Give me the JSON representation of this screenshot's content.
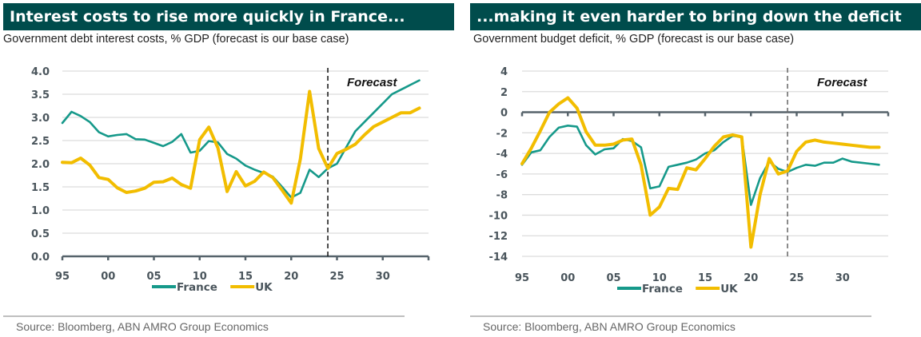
{
  "colors": {
    "france": "#16998a",
    "uk": "#f2bd00",
    "header_bg": "#004c4c",
    "axis": "#56636b",
    "grid": "#dcdcdc"
  },
  "chart_data": [
    {
      "type": "line",
      "title": "Interest costs to rise more quickly in France...",
      "subtitle": "Government debt interest costs, % GDP (forecast is our base case)",
      "xlabel": "",
      "ylabel": "",
      "x_start": 1995,
      "x_end": 2035,
      "x_ticks": [
        1995,
        2000,
        2005,
        2010,
        2015,
        2020,
        2025,
        2030,
        2035
      ],
      "x_tick_labels": [
        "95",
        "00",
        "05",
        "10",
        "15",
        "20",
        "25",
        "30",
        ""
      ],
      "ylim": [
        0,
        4
      ],
      "y_ticks": [
        0,
        0.5,
        1,
        1.5,
        2,
        2.5,
        3,
        3.5,
        4
      ],
      "y_tick_labels": [
        "0.0",
        "0.5",
        "1.0",
        "1.5",
        "2.0",
        "2.5",
        "3.0",
        "3.5",
        "4.0"
      ],
      "grid": true,
      "baseline": 0,
      "forecast_start": 2024,
      "forecast_label": "Forecast",
      "legend": {
        "position": "bottom",
        "entries": [
          "France",
          "UK"
        ]
      },
      "x": [
        1995,
        1996,
        1997,
        1998,
        1999,
        2000,
        2001,
        2002,
        2003,
        2004,
        2005,
        2006,
        2007,
        2008,
        2009,
        2010,
        2011,
        2012,
        2013,
        2014,
        2015,
        2016,
        2017,
        2018,
        2019,
        2020,
        2021,
        2022,
        2023,
        2024,
        2025,
        2026,
        2027,
        2028,
        2029,
        2030,
        2031,
        2032,
        2033,
        2034
      ],
      "series": [
        {
          "name": "France",
          "values": [
            2.88,
            3.12,
            3.03,
            2.9,
            2.68,
            2.59,
            2.62,
            2.64,
            2.53,
            2.52,
            2.45,
            2.38,
            2.47,
            2.64,
            2.24,
            2.28,
            2.49,
            2.46,
            2.21,
            2.11,
            1.96,
            1.87,
            1.8,
            1.72,
            1.5,
            1.27,
            1.37,
            1.87,
            1.71,
            1.9,
            2.0,
            2.35,
            2.7,
            2.9,
            3.1,
            3.3,
            3.5,
            3.6,
            3.7,
            3.8
          ]
        },
        {
          "name": "UK",
          "values": [
            2.03,
            2.02,
            2.12,
            1.97,
            1.7,
            1.66,
            1.48,
            1.38,
            1.41,
            1.47,
            1.6,
            1.61,
            1.69,
            1.55,
            1.47,
            2.52,
            2.79,
            2.34,
            1.4,
            1.83,
            1.52,
            1.62,
            1.82,
            1.7,
            1.43,
            1.15,
            2.1,
            3.56,
            2.33,
            1.9,
            2.22,
            2.31,
            2.42,
            2.62,
            2.8,
            2.9,
            3.0,
            3.1,
            3.1,
            3.2
          ]
        }
      ],
      "source": "Source: Bloomberg, ABN AMRO Group Economics"
    },
    {
      "type": "line",
      "title": "...making it even harder to bring down the deficit",
      "subtitle": "Government budget deficit, % GDP (forecast is our base case)",
      "xlabel": "",
      "ylabel": "",
      "x_start": 1995,
      "x_end": 2035,
      "x_ticks": [
        1995,
        2000,
        2005,
        2010,
        2015,
        2020,
        2025,
        2030,
        2035
      ],
      "x_tick_labels": [
        "95",
        "00",
        "05",
        "10",
        "15",
        "20",
        "25",
        "30",
        ""
      ],
      "ylim": [
        -14,
        4
      ],
      "y_ticks": [
        -14,
        -12,
        -10,
        -8,
        -6,
        -4,
        -2,
        0,
        2,
        4
      ],
      "y_tick_labels": [
        "-14",
        "-12",
        "-10",
        "-8",
        "-6",
        "-4",
        "-2",
        "0",
        "2",
        "4"
      ],
      "grid": true,
      "baseline": 0,
      "forecast_start": 2024,
      "forecast_label": "Forecast",
      "legend": {
        "position": "bottom",
        "entries": [
          "France",
          "UK"
        ]
      },
      "x": [
        1995,
        1996,
        1997,
        1998,
        1999,
        2000,
        2001,
        2002,
        2003,
        2004,
        2005,
        2006,
        2007,
        2008,
        2009,
        2010,
        2011,
        2012,
        2013,
        2014,
        2015,
        2016,
        2017,
        2018,
        2019,
        2020,
        2021,
        2022,
        2023,
        2024,
        2025,
        2026,
        2027,
        2028,
        2029,
        2030,
        2031,
        2032,
        2033,
        2034
      ],
      "series": [
        {
          "name": "France",
          "values": [
            -5.1,
            -3.9,
            -3.7,
            -2.4,
            -1.5,
            -1.3,
            -1.4,
            -3.2,
            -4.1,
            -3.6,
            -3.5,
            -2.6,
            -2.8,
            -3.4,
            -7.4,
            -7.2,
            -5.3,
            -5.1,
            -4.9,
            -4.6,
            -4.0,
            -3.7,
            -2.9,
            -2.3,
            -2.4,
            -9.0,
            -6.4,
            -4.8,
            -5.5,
            -5.8,
            -5.4,
            -5.1,
            -5.2,
            -4.9,
            -4.9,
            -4.5,
            -4.8,
            -4.9,
            -5.0,
            -5.1
          ]
        },
        {
          "name": "UK",
          "values": [
            -5.0,
            -3.5,
            -1.8,
            0.0,
            0.8,
            1.4,
            0.4,
            -1.9,
            -3.2,
            -3.2,
            -3.1,
            -2.7,
            -2.6,
            -5.1,
            -10.0,
            -9.2,
            -7.4,
            -7.5,
            -5.4,
            -5.6,
            -4.5,
            -3.3,
            -2.4,
            -2.2,
            -2.4,
            -13.1,
            -8.0,
            -4.5,
            -6.0,
            -5.7,
            -3.8,
            -2.9,
            -2.7,
            -2.9,
            -3.0,
            -3.1,
            -3.2,
            -3.3,
            -3.4,
            -3.4
          ]
        }
      ],
      "source": "Source: Bloomberg, ABN AMRO Group Economics"
    }
  ]
}
